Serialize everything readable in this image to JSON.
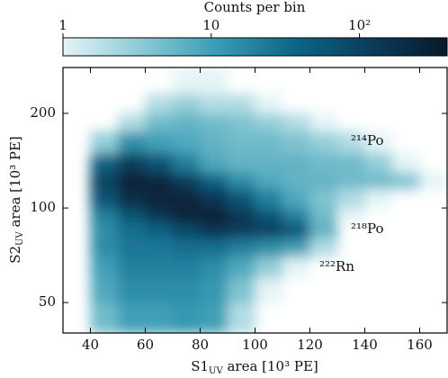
{
  "chart_data": {
    "type": "hist2d",
    "xlabel": {
      "main": "S1",
      "sub": "UV",
      "rest": " area [10³ PE]"
    },
    "ylabel": {
      "main": "S2",
      "sub": "UV",
      "rest": " area [10³ PE]"
    },
    "xbins": [
      30,
      40,
      50,
      60,
      70,
      80,
      90,
      100,
      110,
      120,
      130,
      140,
      150,
      160,
      170
    ],
    "ybins": [
      40,
      50,
      60,
      70,
      80,
      90,
      100,
      115,
      130,
      150,
      175,
      200,
      230,
      280
    ],
    "counts": [
      [
        0,
        5,
        10,
        10,
        12,
        10,
        2,
        0,
        0,
        0,
        0,
        0,
        0,
        0
      ],
      [
        0,
        8,
        15,
        15,
        15,
        12,
        4,
        1,
        0,
        0,
        0,
        0,
        0,
        0
      ],
      [
        0,
        10,
        20,
        20,
        20,
        15,
        8,
        3,
        1,
        0,
        0,
        0,
        0,
        0
      ],
      [
        0,
        15,
        25,
        25,
        30,
        30,
        20,
        15,
        10,
        2,
        0,
        0,
        0,
        0
      ],
      [
        0,
        15,
        30,
        40,
        80,
        150,
        120,
        100,
        60,
        6,
        0,
        0,
        0,
        0
      ],
      [
        0,
        20,
        60,
        150,
        300,
        300,
        150,
        60,
        20,
        5,
        1,
        0,
        0,
        0
      ],
      [
        0,
        60,
        200,
        250,
        250,
        150,
        60,
        20,
        8,
        4,
        2,
        1,
        0,
        0
      ],
      [
        0,
        100,
        300,
        250,
        120,
        40,
        15,
        8,
        6,
        6,
        5,
        5,
        4,
        1
      ],
      [
        0,
        40,
        120,
        60,
        20,
        8,
        6,
        6,
        6,
        5,
        5,
        3,
        1,
        0
      ],
      [
        0,
        3,
        15,
        10,
        8,
        6,
        5,
        5,
        4,
        3,
        2,
        1,
        0,
        0
      ],
      [
        0,
        0,
        2,
        5,
        6,
        5,
        4,
        3,
        2,
        1,
        0,
        0,
        0,
        0
      ],
      [
        0,
        0,
        0,
        2,
        3,
        2,
        2,
        1,
        0,
        0,
        0,
        0,
        0,
        0
      ],
      [
        0,
        0,
        0,
        0,
        1,
        1,
        0,
        0,
        0,
        0,
        0,
        0,
        0,
        0
      ]
    ],
    "xlim": [
      30,
      170
    ],
    "xticks": [
      40,
      60,
      80,
      100,
      120,
      140,
      160
    ],
    "ylim": [
      40,
      280
    ],
    "yscale": "log",
    "yticks": [
      50,
      100,
      200
    ],
    "colorbar": {
      "label": "Counts per bin",
      "clim": [
        1,
        390
      ],
      "scale": "log",
      "ticks": [
        1,
        10,
        {
          "value": 100,
          "label": "10²"
        }
      ]
    },
    "colormap": [
      "#e4f4f6",
      "#8ccbd6",
      "#3a9cb4",
      "#0d6687",
      "#0a3d5c",
      "#07192b"
    ],
    "annotations": [
      "²¹⁴Po",
      "²¹⁸Po",
      "²²²Rn"
    ]
  }
}
